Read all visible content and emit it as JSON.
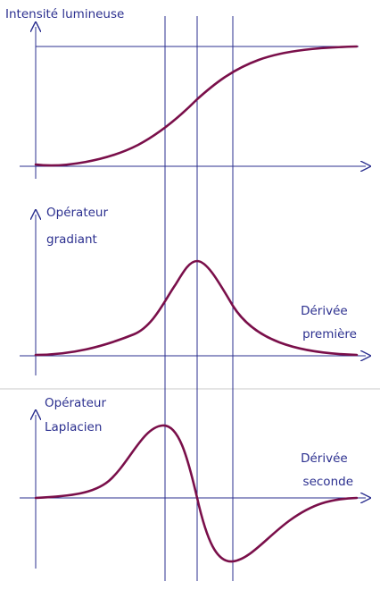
{
  "colors": {
    "axis": "#2b2f8f",
    "curve": "#7a0f4a",
    "divider": "#c8c8c8"
  },
  "panels": [
    {
      "id": "intensity",
      "label_lines": [
        "Intensité lumineuse"
      ],
      "annotation_lines": []
    },
    {
      "id": "gradient",
      "label_lines": [
        "Opérateur",
        "gradiant"
      ],
      "annotation_lines": [
        "Dérivée",
        "première"
      ]
    },
    {
      "id": "laplacian",
      "label_lines": [
        "Opérateur",
        "Laplacien"
      ],
      "annotation_lines": [
        "Dérivée",
        "seconde"
      ]
    }
  ]
}
